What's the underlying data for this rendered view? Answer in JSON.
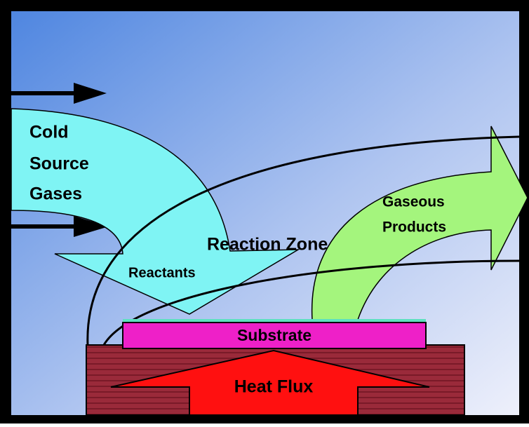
{
  "labels": {
    "cold_source_gases": [
      "Cold",
      "Source",
      "Gases"
    ],
    "reaction_zone": "Reaction Zone",
    "reactants": "Reactants",
    "gaseous_products": [
      "Gaseous",
      "Products"
    ],
    "substrate": "Substrate",
    "heat_flux": "Heat Flux"
  }
}
